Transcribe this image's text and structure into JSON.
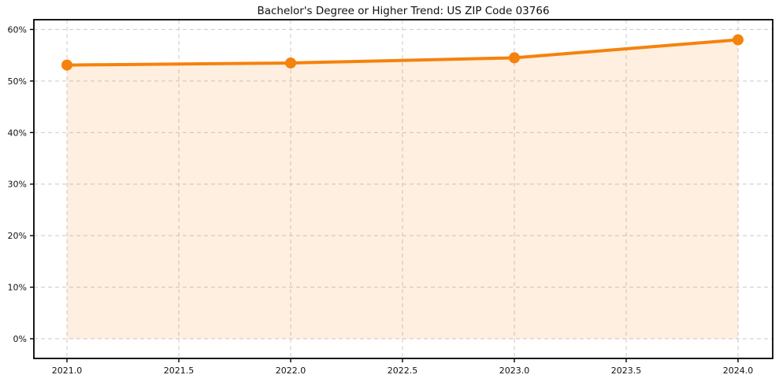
{
  "chart_data": {
    "type": "line",
    "title": "Bachelor's Degree or Higher Trend: US ZIP Code 03766",
    "xlabel": "",
    "ylabel": "",
    "x": [
      2021.0,
      2022.0,
      2023.0,
      2024.0
    ],
    "series": [
      {
        "name": "Bachelor's Degree or Higher %",
        "values": [
          53.1,
          53.5,
          54.5,
          58.0
        ]
      }
    ],
    "x_ticks": [
      2021.0,
      2021.5,
      2022.0,
      2022.5,
      2023.0,
      2023.5,
      2024.0
    ],
    "x_tick_labels": [
      "2021.0",
      "2021.5",
      "2022.0",
      "2022.5",
      "2023.0",
      "2023.5",
      "2024.0"
    ],
    "y_ticks": [
      0,
      10,
      20,
      30,
      40,
      50,
      60
    ],
    "y_tick_labels": [
      "0%",
      "10%",
      "20%",
      "30%",
      "40%",
      "50%",
      "60%"
    ],
    "xlim": [
      2020.852,
      2024.155
    ],
    "ylim": [
      -3.82,
      61.9
    ],
    "grid": "dashed",
    "legend": "none",
    "fill_baseline": 0,
    "colors": {
      "line": "#f5820d",
      "marker": "#f5820d",
      "fill": "#f5820d",
      "fill_opacity": 0.13,
      "grid": "#c9c9c9",
      "spine": "#000000",
      "text": "#111111",
      "background": "#ffffff"
    }
  }
}
